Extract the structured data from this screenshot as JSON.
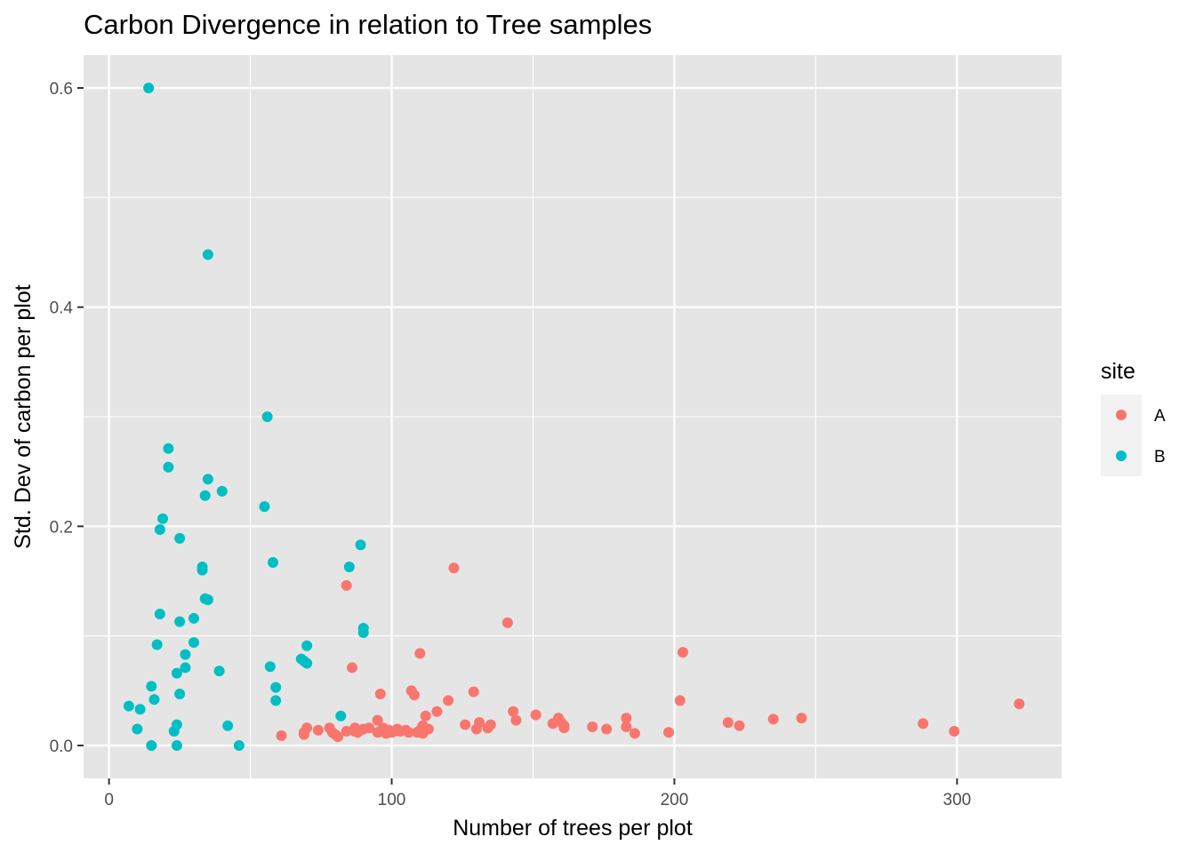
{
  "chart_data": {
    "type": "scatter",
    "title": "Carbon Divergence in relation to Tree samples",
    "xlabel": "Number of trees per plot",
    "ylabel": "Std. Dev of carbon per plot",
    "xlim": [
      -9,
      337
    ],
    "ylim": [
      -0.03,
      0.63
    ],
    "x_ticks": [
      0,
      100,
      200,
      300
    ],
    "x_minor_ticks": [
      50,
      150,
      250
    ],
    "y_ticks": [
      0.0,
      0.2,
      0.4,
      0.6
    ],
    "y_minor_ticks": [
      0.1,
      0.3,
      0.5
    ],
    "x_tick_labels": [
      "0",
      "100",
      "200",
      "300"
    ],
    "y_tick_labels": [
      "0.0",
      "0.2",
      "0.4",
      "0.6"
    ],
    "grid": true,
    "panel_background": "#e5e5e5",
    "grid_color": "#ffffff",
    "legend": {
      "title": "site",
      "position": "right"
    },
    "series": [
      {
        "name": "A",
        "color": "#f8766d",
        "points": [
          [
            61,
            0.009
          ],
          [
            69,
            0.01
          ],
          [
            69,
            0.012
          ],
          [
            70,
            0.016
          ],
          [
            74,
            0.014
          ],
          [
            78,
            0.016
          ],
          [
            79,
            0.012
          ],
          [
            80,
            0.01
          ],
          [
            81,
            0.008
          ],
          [
            84,
            0.013
          ],
          [
            84,
            0.146
          ],
          [
            86,
            0.071
          ],
          [
            87,
            0.013
          ],
          [
            87,
            0.016
          ],
          [
            88,
            0.012
          ],
          [
            89,
            0.014
          ],
          [
            90,
            0.015
          ],
          [
            92,
            0.016
          ],
          [
            95,
            0.012
          ],
          [
            95,
            0.023
          ],
          [
            96,
            0.047
          ],
          [
            96,
            0.013
          ],
          [
            97,
            0.016
          ],
          [
            98,
            0.011
          ],
          [
            99,
            0.014
          ],
          [
            100,
            0.012
          ],
          [
            101,
            0.013
          ],
          [
            102,
            0.015
          ],
          [
            103,
            0.013
          ],
          [
            105,
            0.014
          ],
          [
            106,
            0.012
          ],
          [
            107,
            0.05
          ],
          [
            108,
            0.046
          ],
          [
            109,
            0.012
          ],
          [
            110,
            0.084
          ],
          [
            110,
            0.014
          ],
          [
            111,
            0.011
          ],
          [
            111,
            0.018
          ],
          [
            112,
            0.027
          ],
          [
            113,
            0.015
          ],
          [
            116,
            0.031
          ],
          [
            120,
            0.041
          ],
          [
            122,
            0.162
          ],
          [
            126,
            0.019
          ],
          [
            129,
            0.049
          ],
          [
            130,
            0.015
          ],
          [
            131,
            0.021
          ],
          [
            134,
            0.016
          ],
          [
            135,
            0.019
          ],
          [
            141,
            0.112
          ],
          [
            143,
            0.031
          ],
          [
            144,
            0.023
          ],
          [
            151,
            0.028
          ],
          [
            157,
            0.02
          ],
          [
            159,
            0.025
          ],
          [
            160,
            0.021
          ],
          [
            161,
            0.016
          ],
          [
            161,
            0.018
          ],
          [
            171,
            0.017
          ],
          [
            176,
            0.015
          ],
          [
            183,
            0.025
          ],
          [
            183,
            0.017
          ],
          [
            186,
            0.011
          ],
          [
            198,
            0.012
          ],
          [
            202,
            0.041
          ],
          [
            203,
            0.085
          ],
          [
            219,
            0.021
          ],
          [
            223,
            0.018
          ],
          [
            235,
            0.024
          ],
          [
            245,
            0.025
          ],
          [
            288,
            0.02
          ],
          [
            299,
            0.013
          ],
          [
            322,
            0.038
          ]
        ]
      },
      {
        "name": "B",
        "color": "#00bfc4",
        "points": [
          [
            7,
            0.036
          ],
          [
            10,
            0.015
          ],
          [
            11,
            0.033
          ],
          [
            14,
            0.6
          ],
          [
            15,
            0.0
          ],
          [
            15,
            0.054
          ],
          [
            16,
            0.042
          ],
          [
            17,
            0.092
          ],
          [
            18,
            0.12
          ],
          [
            18,
            0.197
          ],
          [
            19,
            0.207
          ],
          [
            21,
            0.271
          ],
          [
            21,
            0.254
          ],
          [
            23,
            0.013
          ],
          [
            24,
            0.019
          ],
          [
            24,
            0.0
          ],
          [
            24,
            0.066
          ],
          [
            25,
            0.047
          ],
          [
            25,
            0.113
          ],
          [
            25,
            0.189
          ],
          [
            27,
            0.071
          ],
          [
            27,
            0.083
          ],
          [
            30,
            0.116
          ],
          [
            30,
            0.094
          ],
          [
            33,
            0.163
          ],
          [
            33,
            0.16
          ],
          [
            34,
            0.134
          ],
          [
            34,
            0.228
          ],
          [
            35,
            0.133
          ],
          [
            35,
            0.243
          ],
          [
            35,
            0.448
          ],
          [
            39,
            0.068
          ],
          [
            40,
            0.232
          ],
          [
            42,
            0.018
          ],
          [
            46,
            0.0
          ],
          [
            55,
            0.218
          ],
          [
            56,
            0.3
          ],
          [
            57,
            0.072
          ],
          [
            58,
            0.167
          ],
          [
            59,
            0.041
          ],
          [
            59,
            0.053
          ],
          [
            68,
            0.079
          ],
          [
            69,
            0.077
          ],
          [
            70,
            0.075
          ],
          [
            70,
            0.091
          ],
          [
            82,
            0.027
          ],
          [
            85,
            0.163
          ],
          [
            89,
            0.183
          ],
          [
            90,
            0.107
          ],
          [
            90,
            0.103
          ]
        ]
      }
    ]
  }
}
